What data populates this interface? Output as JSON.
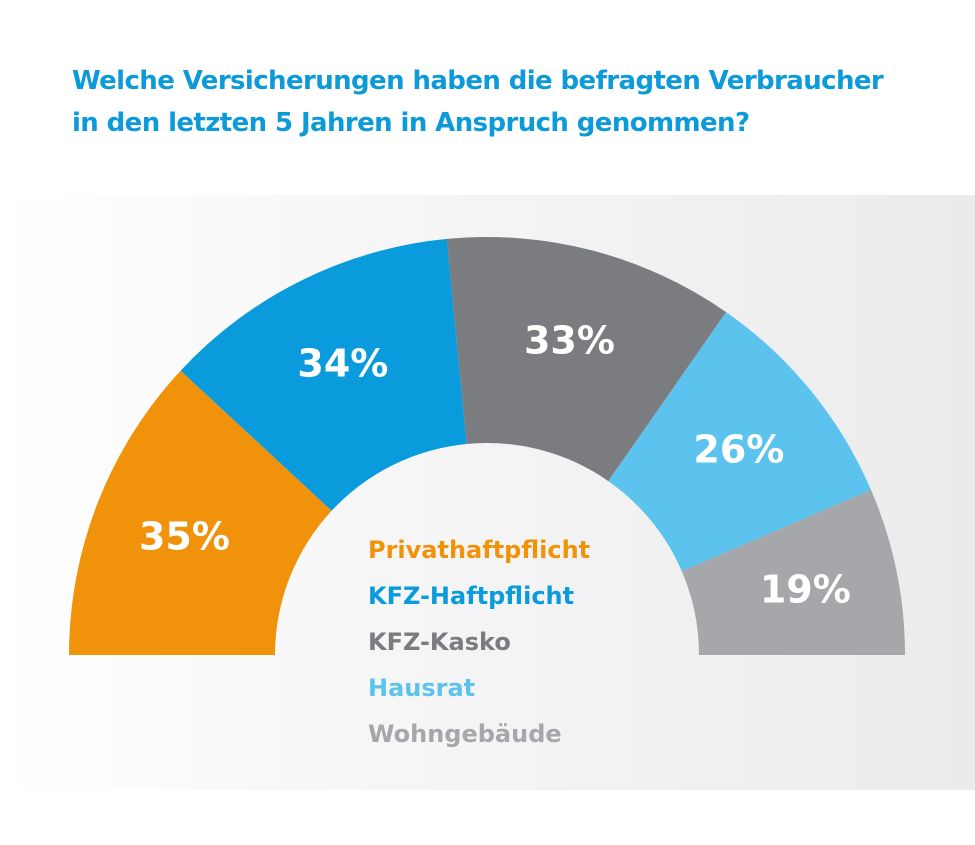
{
  "title_lines": [
    "Welche Versicherungen haben die befragten Verbraucher",
    "in den letzten 5 Jahren in Anspruch genommen?"
  ],
  "chart_data": {
    "type": "pie",
    "variant": "half-donut",
    "categories": [
      "Privathaftpflicht",
      "KFZ-Haftpflicht",
      "KFZ-Kasko",
      "Hausrat",
      "Wohngebäude"
    ],
    "values": [
      35,
      34,
      33,
      26,
      19
    ],
    "value_labels": [
      "35%",
      "34%",
      "33%",
      "26%",
      "19%"
    ],
    "colors": [
      "#f0930b",
      "#0a9bdc",
      "#7b7c7f",
      "#5bc3ee",
      "#a6a7aa"
    ],
    "legend_position": "center"
  }
}
